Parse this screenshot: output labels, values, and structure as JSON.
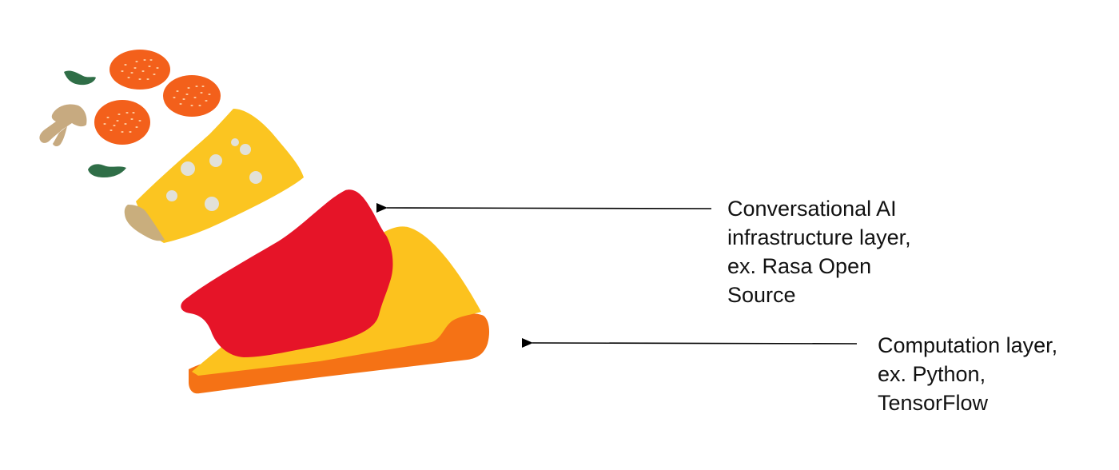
{
  "labels": [
    {
      "lines": [
        "Conversational AI",
        "infrastructure layer,",
        "ex. Rasa Open",
        "Source"
      ],
      "points_to": "middle layer (sauce)"
    },
    {
      "lines": [
        "Computation layer,",
        "ex. Python,",
        "TensorFlow"
      ],
      "points_to": "bottom layer (crust)"
    }
  ],
  "colors": {
    "crust": "#f57215",
    "cheese_yellow": "#fcc21e",
    "sauce": "#e61428",
    "cheese_wedge": "#fbc521",
    "cheese_rind": "#c9ae7d",
    "cheese_holes": "#e2e1d8",
    "pepperoni": "#f3601b",
    "pepperoni_dots": "#ffd9b0",
    "basil": "#2f6e47",
    "mushroom": "#c7aa80",
    "arrow": "#000000"
  },
  "icons": [
    "pepperoni-icon",
    "basil-leaf-icon",
    "mushroom-icon",
    "cheese-wedge-icon",
    "pizza-slice-icon"
  ]
}
